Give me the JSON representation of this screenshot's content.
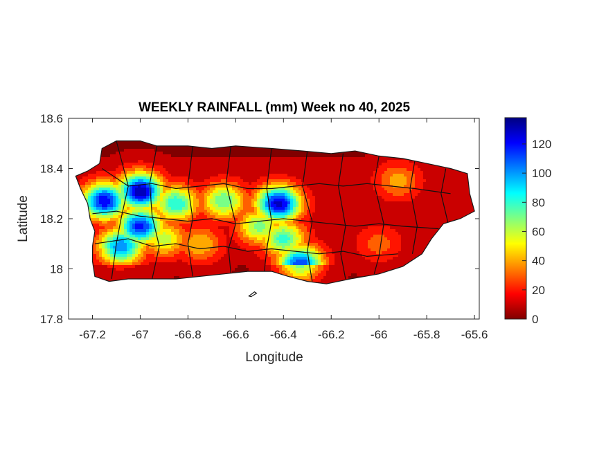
{
  "chart_data": {
    "type": "heatmap",
    "subtype": "filled-contour map",
    "title": "WEEKLY RAINFALL (mm) Week no 40, 2025",
    "xlabel": "Longitude",
    "ylabel": "Latitude",
    "xlim": [
      -67.3,
      -65.58
    ],
    "ylim": [
      17.8,
      18.6
    ],
    "xticks": [
      -67.2,
      -67,
      -66.8,
      -66.6,
      -66.4,
      -66.2,
      -66,
      -65.8,
      -65.6
    ],
    "xtick_labels": [
      "-67.2",
      "-67",
      "-66.8",
      "-66.6",
      "-66.4",
      "-66.2",
      "-66",
      "-65.8",
      "-65.6"
    ],
    "yticks": [
      17.8,
      18,
      18.2,
      18.4,
      18.6
    ],
    "ytick_labels": [
      "17.8",
      "18",
      "18.2",
      "18.4",
      "18.6"
    ],
    "grid": false,
    "colormap": "jet",
    "colorbar": {
      "position": "right",
      "range": [
        0,
        138
      ],
      "ticks": [
        0,
        20,
        40,
        60,
        80,
        100,
        120
      ],
      "tick_labels": [
        "0",
        "20",
        "40",
        "60",
        "80",
        "100",
        "120"
      ],
      "colors": [
        "#800000",
        "#ff0000",
        "#ff8000",
        "#ffff00",
        "#80ff80",
        "#00ffff",
        "#0080ff",
        "#0000ff",
        "#000080"
      ]
    },
    "hotspots": [
      {
        "lon": -67.0,
        "lat": 18.31,
        "value": 135
      },
      {
        "lon": -67.15,
        "lat": 18.27,
        "value": 125
      },
      {
        "lon": -67.0,
        "lat": 18.17,
        "value": 120
      },
      {
        "lon": -67.08,
        "lat": 18.09,
        "value": 105
      },
      {
        "lon": -66.42,
        "lat": 18.26,
        "value": 130
      },
      {
        "lon": -66.33,
        "lat": 18.02,
        "value": 115
      },
      {
        "lon": -66.85,
        "lat": 18.26,
        "value": 85
      },
      {
        "lon": -66.65,
        "lat": 18.27,
        "value": 75
      },
      {
        "lon": -66.5,
        "lat": 18.17,
        "value": 70
      },
      {
        "lon": -66.4,
        "lat": 18.12,
        "value": 80
      },
      {
        "lon": -66.9,
        "lat": 18.12,
        "value": 60
      },
      {
        "lon": -66.75,
        "lat": 18.1,
        "value": 45
      },
      {
        "lon": -65.92,
        "lat": 18.35,
        "value": 40
      },
      {
        "lon": -66.0,
        "lat": 18.1,
        "value": 30
      }
    ],
    "background_value": 8
  }
}
